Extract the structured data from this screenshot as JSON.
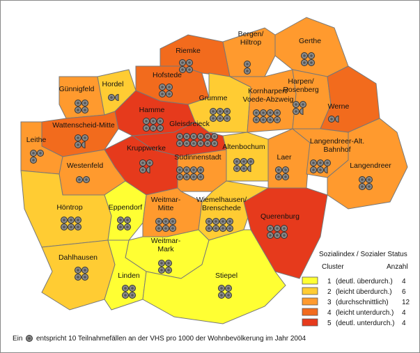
{
  "map": {
    "districts": [
      {
        "lines": [
          "Gerthe"
        ],
        "cluster": 2,
        "dots": 4
      },
      {
        "lines": [
          "Bergen/",
          "Hiltrop"
        ],
        "cluster": 2,
        "dots": 2
      },
      {
        "lines": [
          "Riemke"
        ],
        "cluster": 3,
        "dots": 4
      },
      {
        "lines": [
          "Hofstede"
        ],
        "cluster": 3,
        "dots": 4
      },
      {
        "lines": [
          "Günnigfeld"
        ],
        "cluster": 2,
        "dots": 4
      },
      {
        "lines": [
          "Hordel"
        ],
        "cluster": 1,
        "dots": 1.5
      },
      {
        "lines": [
          "Grumme"
        ],
        "cluster": 1,
        "dots": 6
      },
      {
        "lines": [
          "Kornharpen/",
          "Voede-Abzweig"
        ],
        "cluster": 2,
        "dots": 8
      },
      {
        "lines": [
          "Harpen/",
          "Rosenberg"
        ],
        "cluster": 2,
        "dots": 3.5
      },
      {
        "lines": [
          "Werne"
        ],
        "cluster": 3,
        "dots": 1.5
      },
      {
        "lines": [
          "Hamme"
        ],
        "cluster": 4,
        "dots": 6
      },
      {
        "lines": [
          "Wattenscheid-Mitte"
        ],
        "cluster": 3,
        "dots": 3.5
      },
      {
        "lines": [
          "Gleisdreieck"
        ],
        "cluster": 4,
        "dots": 12
      },
      {
        "lines": [
          "Leithe"
        ],
        "cluster": 2,
        "dots": 3
      },
      {
        "lines": [
          "Kruppwerke"
        ],
        "cluster": 4,
        "dots": 3.5
      },
      {
        "lines": [
          "Westenfeld"
        ],
        "cluster": 2,
        "dots": 2
      },
      {
        "lines": [
          "Südinnenstadt"
        ],
        "cluster": 2,
        "dots": 8
      },
      {
        "lines": [
          "Altenbochum"
        ],
        "cluster": 1,
        "dots": 5.5
      },
      {
        "lines": [
          "Laer"
        ],
        "cluster": 2,
        "dots": 4
      },
      {
        "lines": [
          "Langendreer-Alt.",
          "Bahnhof"
        ],
        "cluster": 2,
        "dots": 5.5
      },
      {
        "lines": [
          "Langendreer"
        ],
        "cluster": 2,
        "dots": 4
      },
      {
        "lines": [
          "Höntrop"
        ],
        "cluster": 1,
        "dots": 6
      },
      {
        "lines": [
          "Eppendorf"
        ],
        "cluster": 0,
        "dots": 4
      },
      {
        "lines": [
          "Weitmar-",
          "Mitte"
        ],
        "cluster": 2,
        "dots": 6
      },
      {
        "lines": [
          "Wiemelhausen/",
          "Brenschede"
        ],
        "cluster": 1,
        "dots": 8
      },
      {
        "lines": [
          "Querenburg"
        ],
        "cluster": 4,
        "dots": 6
      },
      {
        "lines": [
          "Dahlhausen"
        ],
        "cluster": 1,
        "dots": 4
      },
      {
        "lines": [
          "Weitmar-",
          "Mark"
        ],
        "cluster": 0,
        "dots": 4
      },
      {
        "lines": [
          "Linden"
        ],
        "cluster": 0,
        "dots": 4
      },
      {
        "lines": [
          "Stiepel"
        ],
        "cluster": 0,
        "dots": 4
      }
    ],
    "legend": {
      "title": "Sozialindex / Sozialer Status",
      "cluster_header": "Cluster",
      "count_header": "Anzahl",
      "rows": [
        {
          "number": "1",
          "label": "(deutl. überdurch.)",
          "count": 4,
          "color": "#ffff33"
        },
        {
          "number": "2",
          "label": "(leicht überdurch.)",
          "count": 6,
          "color": "#ffcc33"
        },
        {
          "number": "3",
          "label": "(durchschnittlich)",
          "count": 12,
          "color": "#ff9a2e"
        },
        {
          "number": "4",
          "label": "(leicht unterdurch.)",
          "count": 4,
          "color": "#f26b1d"
        },
        {
          "number": "5",
          "label": "(deutl. unterdurch.)",
          "count": 4,
          "color": "#e63a1c"
        }
      ]
    },
    "footnote": {
      "before": "Ein",
      "after": "entspricht 10 Teilnahmefällen an der VHS pro 1000 der Wohnbevölkerung im Jahr 2004"
    }
  }
}
